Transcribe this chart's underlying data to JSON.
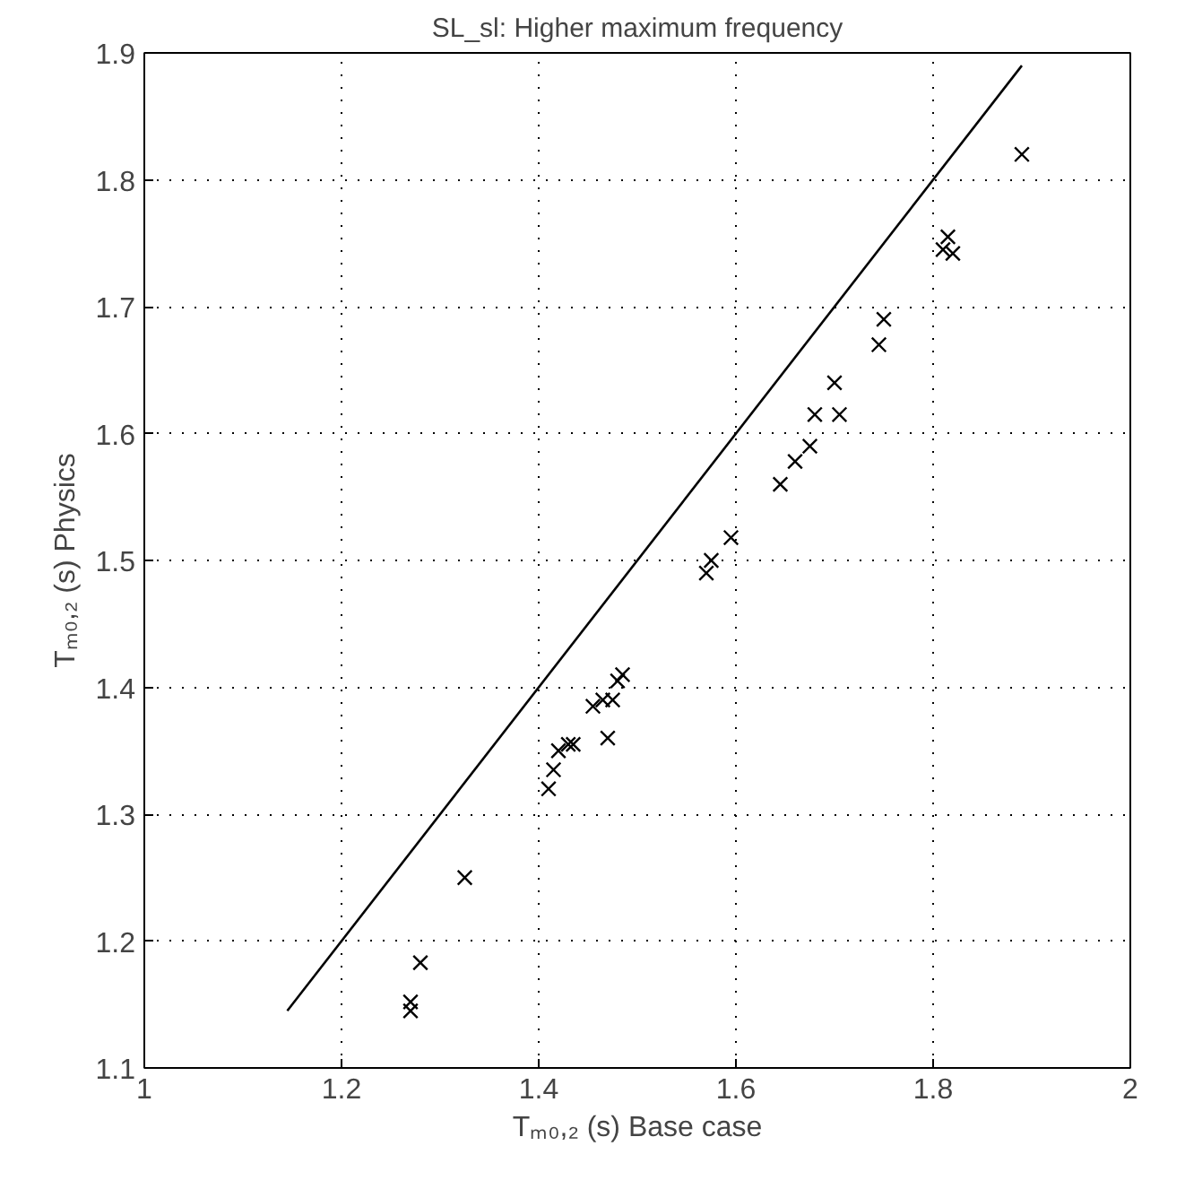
{
  "chart_data": {
    "type": "scatter",
    "title": "SL_sl: Higher maximum frequency",
    "xlabel": "Tₘ₀,₂ (s) Base case",
    "ylabel": "Tₘ₀,₂ (s) Physics",
    "xlim": [
      1,
      2
    ],
    "ylim": [
      1.1,
      1.9
    ],
    "xticks": [
      1,
      1.2,
      1.4,
      1.6,
      1.8,
      2
    ],
    "yticks": [
      1.1,
      1.2,
      1.3,
      1.4,
      1.5,
      1.6,
      1.7,
      1.8,
      1.9
    ],
    "grid": true,
    "series": [
      {
        "color": "#000000",
        "marker": "cross",
        "x": [
          1.27,
          1.27,
          1.28,
          1.325,
          1.41,
          1.415,
          1.42,
          1.43,
          1.435,
          1.455,
          1.465,
          1.47,
          1.475,
          1.48,
          1.485,
          1.57,
          1.575,
          1.595,
          1.645,
          1.66,
          1.675,
          1.68,
          1.705,
          1.7,
          1.745,
          1.75,
          1.81,
          1.815,
          1.82,
          1.89
        ],
        "values": [
          1.145,
          1.152,
          1.183,
          1.25,
          1.32,
          1.335,
          1.35,
          1.355,
          1.355,
          1.385,
          1.39,
          1.36,
          1.39,
          1.405,
          1.41,
          1.49,
          1.5,
          1.518,
          1.56,
          1.578,
          1.59,
          1.615,
          1.615,
          1.64,
          1.67,
          1.69,
          1.745,
          1.755,
          1.742,
          1.82
        ]
      },
      {
        "type": "line",
        "color": "#000000",
        "line_style": "solid",
        "x": [
          1.145,
          1.89
        ],
        "values": [
          1.145,
          1.89
        ]
      }
    ]
  }
}
